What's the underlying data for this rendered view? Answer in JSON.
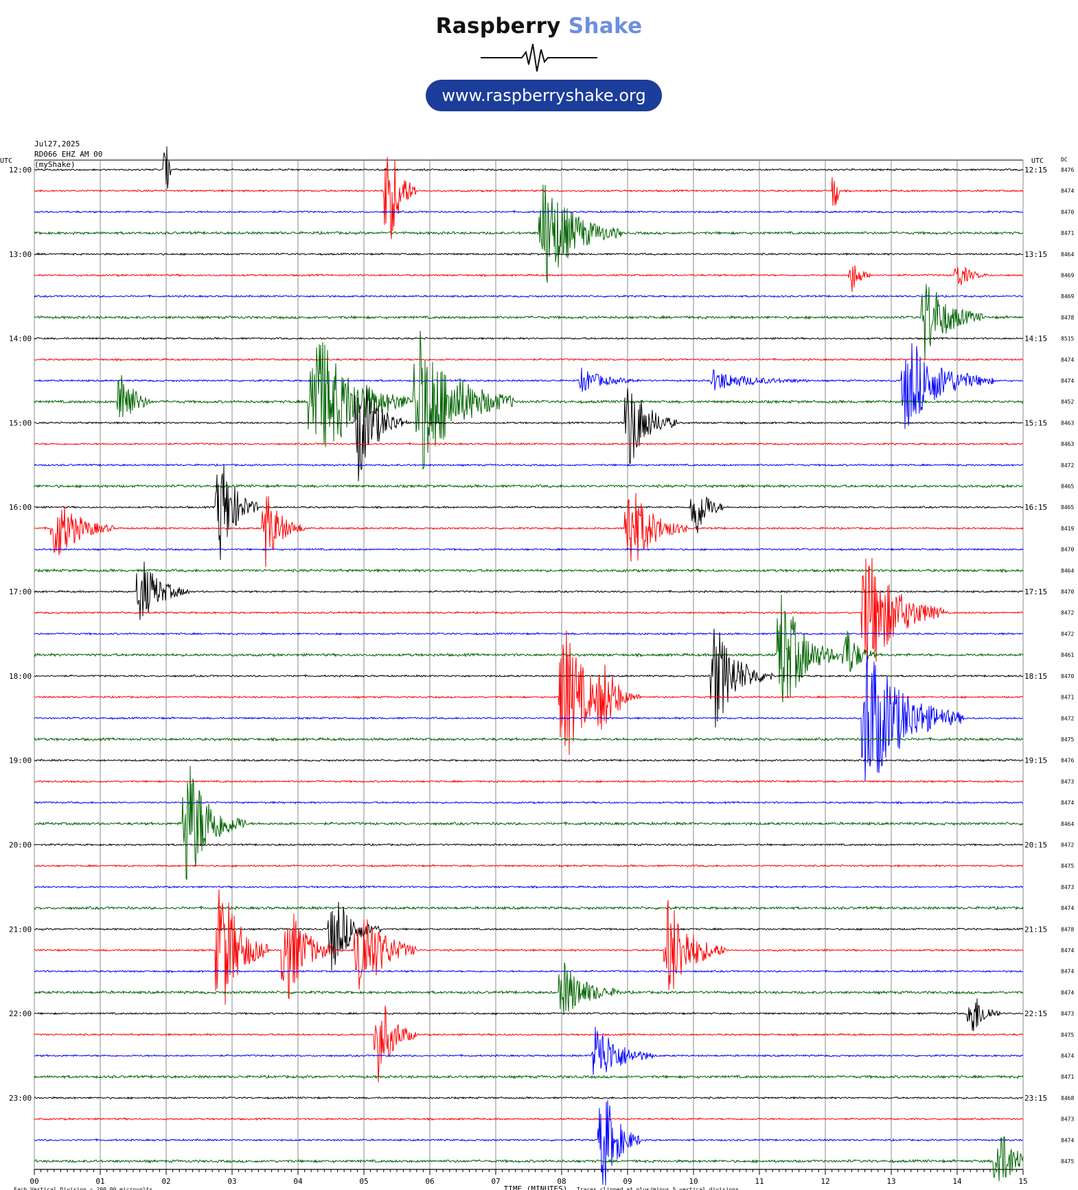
{
  "brand": {
    "name_part1": "Raspberry",
    "name_part2": "Shake",
    "url": "www.raspberryshake.org",
    "accent_color": "#6d8fe0",
    "pill_color": "#1c3d99"
  },
  "header": {
    "date": "Jul27,2025",
    "station": "RD066 EHZ AM 00",
    "source": "(myShake)"
  },
  "chart_data": {
    "type": "helicorder",
    "left_axis_title": "UTC",
    "right_axis_title": "UTC",
    "dc_label": "DC",
    "xlabel": "TIME (MINUTES)",
    "x_ticks": [
      "00",
      "01",
      "02",
      "03",
      "04",
      "05",
      "06",
      "07",
      "08",
      "09",
      "10",
      "11",
      "12",
      "13",
      "14",
      "15"
    ],
    "xlim": [
      0,
      15
    ],
    "left_time_labels": [
      "12:00",
      "13:00",
      "14:00",
      "15:00",
      "16:00",
      "17:00",
      "18:00",
      "19:00",
      "20:00",
      "21:00",
      "22:00",
      "23:00"
    ],
    "right_time_labels": [
      "12:15",
      "13:15",
      "14:15",
      "15:15",
      "16:15",
      "17:15",
      "18:15",
      "19:15",
      "20:15",
      "21:15",
      "22:15",
      "23:15"
    ],
    "dc_offsets": [
      "8476",
      "8474",
      "8470",
      "8471",
      "8464",
      "8469",
      "8469",
      "8478",
      "8515",
      "8474",
      "8474",
      "8452",
      "8463",
      "8463",
      "8472",
      "8465",
      "8465",
      "8419",
      "8470",
      "8464",
      "8470",
      "8472",
      "8472",
      "8461",
      "8470",
      "8471",
      "8472",
      "8475",
      "8476",
      "8473",
      "8474",
      "8464",
      "8472",
      "8475",
      "8473",
      "8474",
      "8478",
      "8474",
      "8474",
      "8474",
      "8473",
      "8475",
      "8474",
      "8471",
      "8468",
      "8473",
      "8474",
      "8475"
    ],
    "trace_colors": [
      "#000000",
      "#ff0000",
      "#0000ff",
      "#006400"
    ],
    "events": [
      {
        "row": 0,
        "minute": 2.0,
        "amp": 1.6,
        "dur": 0.05
      },
      {
        "row": 1,
        "minute": 5.35,
        "amp": 3.5,
        "dur": 0.3
      },
      {
        "row": 1,
        "minute": 12.15,
        "amp": 1.6,
        "dur": 0.05
      },
      {
        "row": 3,
        "minute": 7.7,
        "amp": 3.0,
        "dur": 0.8
      },
      {
        "row": 5,
        "minute": 12.4,
        "amp": 0.9,
        "dur": 0.2
      },
      {
        "row": 5,
        "minute": 14.0,
        "amp": 0.7,
        "dur": 0.3
      },
      {
        "row": 7,
        "minute": 13.5,
        "amp": 2.2,
        "dur": 0.6
      },
      {
        "row": 10,
        "minute": 13.2,
        "amp": 2.5,
        "dur": 0.9
      },
      {
        "row": 10,
        "minute": 8.3,
        "amp": 0.6,
        "dur": 0.6
      },
      {
        "row": 10,
        "minute": 10.3,
        "amp": 0.5,
        "dur": 1.0
      },
      {
        "row": 11,
        "minute": 1.3,
        "amp": 2.2,
        "dur": 0.3
      },
      {
        "row": 11,
        "minute": 4.2,
        "amp": 4.0,
        "dur": 1.0
      },
      {
        "row": 11,
        "minute": 5.8,
        "amp": 4.0,
        "dur": 1.0
      },
      {
        "row": 12,
        "minute": 4.9,
        "amp": 3.0,
        "dur": 0.5
      },
      {
        "row": 12,
        "minute": 9.0,
        "amp": 2.5,
        "dur": 0.5
      },
      {
        "row": 16,
        "minute": 10.0,
        "amp": 2.0,
        "dur": 0.3
      },
      {
        "row": 16,
        "minute": 2.8,
        "amp": 3.0,
        "dur": 0.4
      },
      {
        "row": 17,
        "minute": 0.3,
        "amp": 1.8,
        "dur": 0.6
      },
      {
        "row": 17,
        "minute": 3.5,
        "amp": 2.0,
        "dur": 0.4
      },
      {
        "row": 17,
        "minute": 9.0,
        "amp": 2.5,
        "dur": 0.6
      },
      {
        "row": 20,
        "minute": 1.6,
        "amp": 1.8,
        "dur": 0.5
      },
      {
        "row": 21,
        "minute": 12.6,
        "amp": 3.5,
        "dur": 0.8
      },
      {
        "row": 23,
        "minute": 11.3,
        "amp": 3.5,
        "dur": 0.6
      },
      {
        "row": 23,
        "minute": 12.3,
        "amp": 1.6,
        "dur": 0.3
      },
      {
        "row": 24,
        "minute": 10.3,
        "amp": 2.8,
        "dur": 0.6
      },
      {
        "row": 25,
        "minute": 8.0,
        "amp": 4.0,
        "dur": 0.6
      },
      {
        "row": 25,
        "minute": 8.6,
        "amp": 1.5,
        "dur": 0.4
      },
      {
        "row": 26,
        "minute": 12.6,
        "amp": 4.0,
        "dur": 1.0
      },
      {
        "row": 31,
        "minute": 2.3,
        "amp": 3.5,
        "dur": 0.6
      },
      {
        "row": 36,
        "minute": 4.5,
        "amp": 2.2,
        "dur": 0.5
      },
      {
        "row": 37,
        "minute": 2.8,
        "amp": 4.0,
        "dur": 0.5
      },
      {
        "row": 37,
        "minute": 3.8,
        "amp": 3.0,
        "dur": 0.5
      },
      {
        "row": 37,
        "minute": 4.9,
        "amp": 3.0,
        "dur": 0.6
      },
      {
        "row": 37,
        "minute": 9.6,
        "amp": 2.8,
        "dur": 0.6
      },
      {
        "row": 39,
        "minute": 8.0,
        "amp": 1.6,
        "dur": 0.6
      },
      {
        "row": 40,
        "minute": 14.2,
        "amp": 1.5,
        "dur": 0.3
      },
      {
        "row": 41,
        "minute": 5.2,
        "amp": 2.5,
        "dur": 0.4
      },
      {
        "row": 42,
        "minute": 8.5,
        "amp": 1.8,
        "dur": 0.6
      },
      {
        "row": 46,
        "minute": 8.6,
        "amp": 3.0,
        "dur": 0.4
      },
      {
        "row": 47,
        "minute": 14.6,
        "amp": 1.8,
        "dur": 0.5
      }
    ]
  },
  "footer": {
    "scale_note": "Each Vertical Division = 200.00 microvolts",
    "clip_note": "Traces clipped at plus/minus 5 vertical divisions"
  }
}
